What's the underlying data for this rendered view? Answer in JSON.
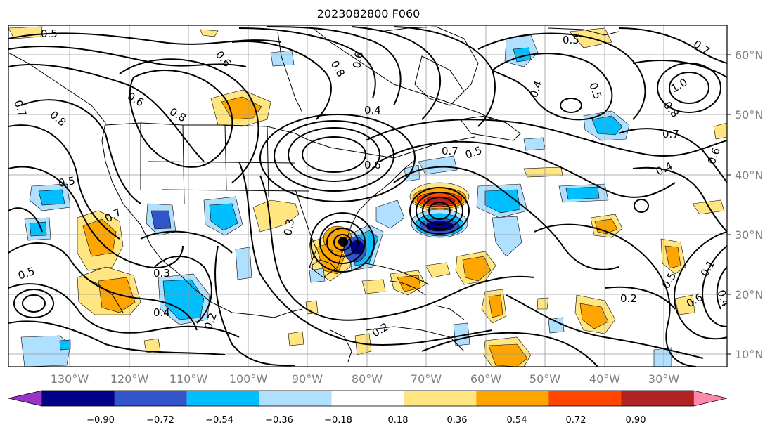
{
  "title": "2023082800 F060",
  "lat_labels": [
    "60°N",
    "50°N",
    "40°N",
    "30°N",
    "20°N",
    "10°N"
  ],
  "lon_labels": [
    "130°W",
    "120°W",
    "110°W",
    "100°W",
    "90°W",
    "80°W",
    "70°W",
    "60°W",
    "50°W",
    "40°W",
    "30°W"
  ],
  "colorbar": {
    "colors": [
      "#9933cc",
      "#00008b",
      "#3355cc",
      "#00bfff",
      "#b0e0ff",
      "#ffffff",
      "#ffe680",
      "#ffa500",
      "#ff4500",
      "#b22222",
      "#ff88aa"
    ],
    "ticks": [
      "−0.90",
      "−0.72",
      "−0.54",
      "−0.36",
      "−0.18",
      "0.18",
      "0.36",
      "0.54",
      "0.72",
      "0.90"
    ]
  },
  "contour_labels": [
    "0.5",
    "0.6",
    "0.7",
    "0.8",
    "0.8",
    "0.7",
    "0.5",
    "0.3",
    "0.4",
    "0.2",
    "0.6",
    "0.8",
    "0.6",
    "0.4",
    "0.5",
    "0.3",
    "0.6",
    "0.5",
    "0.7",
    "0.4",
    "0.5",
    "0.8",
    "1.0",
    "0.7",
    "0.4",
    "0.6",
    "0.5",
    "0.2",
    "0.7",
    "0.5",
    "0.2",
    "0.6",
    "0.1",
    "0.4"
  ]
}
